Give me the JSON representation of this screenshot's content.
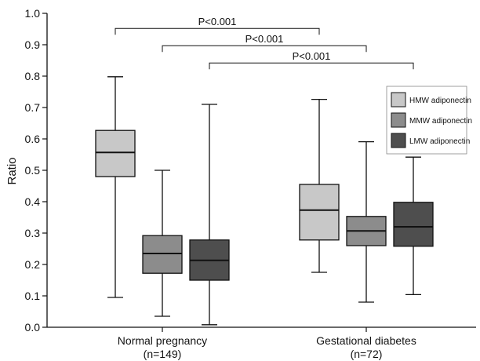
{
  "chart_data": {
    "type": "boxplot",
    "ylabel": "Ratio",
    "ylim": [
      0,
      1.0
    ],
    "yticks": [
      "0.0",
      "0.1",
      "0.2",
      "0.3",
      "0.4",
      "0.5",
      "0.6",
      "0.7",
      "0.8",
      "0.9",
      "1.0"
    ],
    "categories": [
      {
        "line1": "Normal pregnancy",
        "line2": "(n=149)"
      },
      {
        "line1": "Gestational diabetes",
        "line2": "(n=72)"
      }
    ],
    "series": [
      {
        "name": "HMW adiponectin",
        "color": "#c8c8c8",
        "boxes": [
          {
            "min": 0.095,
            "q1": 0.48,
            "median": 0.557,
            "q3": 0.627,
            "max": 0.798
          },
          {
            "min": 0.175,
            "q1": 0.278,
            "median": 0.373,
            "q3": 0.455,
            "max": 0.726
          }
        ]
      },
      {
        "name": "MMW adiponectin",
        "color": "#8c8c8c",
        "boxes": [
          {
            "min": 0.035,
            "q1": 0.172,
            "median": 0.235,
            "q3": 0.292,
            "max": 0.5
          },
          {
            "min": 0.08,
            "q1": 0.26,
            "median": 0.307,
            "q3": 0.353,
            "max": 0.591
          }
        ]
      },
      {
        "name": "LMW adiponectin",
        "color": "#4e4e4e",
        "boxes": [
          {
            "min": 0.008,
            "q1": 0.15,
            "median": 0.213,
            "q3": 0.278,
            "max": 0.71
          },
          {
            "min": 0.104,
            "q1": 0.258,
            "median": 0.32,
            "q3": 0.398,
            "max": 0.542
          }
        ]
      }
    ],
    "legend": {
      "position": "top-right"
    },
    "annotations": [
      {
        "label": "P<0.001",
        "series_index": 0,
        "y": 0.952
      },
      {
        "label": "P<0.001",
        "series_index": 1,
        "y": 0.897
      },
      {
        "label": "P<0.001",
        "series_index": 2,
        "y": 0.842
      }
    ]
  }
}
